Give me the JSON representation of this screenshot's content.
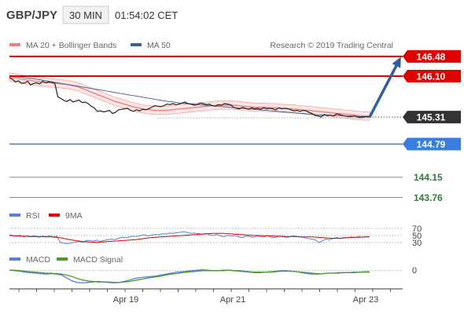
{
  "header": {
    "pair": "GBP/JPY",
    "timeframe": "30 MIN",
    "time": "01:54:02 CET"
  },
  "legend": {
    "bollinger": "MA 20 + Bollinger Bands",
    "ma50": "MA 50",
    "copyright": "Research © 2019 Trading Central"
  },
  "colors": {
    "bollinger": "#f08080",
    "ma50": "#3a6090",
    "resistance": "#e00000",
    "support": "#3a7de0",
    "target": "#5fae5f",
    "current": "#333333",
    "arrow": "#2f5f9f",
    "rsi": "#5b7fd6",
    "rsi_ma": "#e00000",
    "macd": "#5b7fd6",
    "macd_signal": "#4a9a2a"
  },
  "levels": [
    {
      "label": "146.48",
      "value": 146.48,
      "kind": "resistance"
    },
    {
      "label": "146.10",
      "value": 146.1,
      "kind": "resistance"
    },
    {
      "label": "145.31",
      "value": 145.31,
      "kind": "current"
    },
    {
      "label": "144.79",
      "value": 144.79,
      "kind": "support"
    },
    {
      "label": "144.15",
      "value": 144.15,
      "kind": "target"
    },
    {
      "label": "143.76",
      "value": 143.76,
      "kind": "target"
    }
  ],
  "rsi_panel": {
    "label": "RSI",
    "ma_label": "9MA",
    "ticks": [
      "70",
      "50",
      "30"
    ]
  },
  "macd_panel": {
    "label": "MACD",
    "signal_label": "MACD Signal",
    "ticks": [
      "0"
    ]
  },
  "chart_data": {
    "type": "line",
    "x_labels": [
      "Apr 19",
      "Apr 21",
      "Apr 23"
    ],
    "price_ylim": [
      143.6,
      146.6
    ],
    "price": [
      146.07,
      146.04,
      145.99,
      146.01,
      145.96,
      145.97,
      146.0,
      145.93,
      145.96,
      145.97,
      145.95,
      146.0,
      145.97,
      145.99,
      145.98,
      145.96,
      145.7,
      145.67,
      145.63,
      145.61,
      145.65,
      145.6,
      145.62,
      145.64,
      145.59,
      145.6,
      145.57,
      145.52,
      145.49,
      145.42,
      145.43,
      145.41,
      145.42,
      145.44,
      145.38,
      145.4,
      145.45,
      145.46,
      145.47,
      145.48,
      145.44,
      145.42,
      145.45,
      145.43,
      145.46,
      145.45,
      145.47,
      145.5,
      145.53,
      145.52,
      145.51,
      145.53,
      145.56,
      145.55,
      145.57,
      145.55,
      145.56,
      145.58,
      145.6,
      145.57,
      145.56,
      145.54,
      145.55,
      145.58,
      145.57,
      145.55,
      145.56,
      145.53,
      145.52,
      145.55,
      145.54,
      145.57,
      145.56,
      145.55,
      145.5,
      145.48,
      145.47,
      145.5,
      145.48,
      145.46,
      145.49,
      145.47,
      145.48,
      145.46,
      145.49,
      145.47,
      145.48,
      145.47,
      145.45,
      145.49,
      145.47,
      145.48,
      145.47,
      145.45,
      145.43,
      145.44,
      145.42,
      145.44,
      145.43,
      145.4,
      145.38,
      145.34,
      145.33,
      145.31,
      145.36,
      145.34,
      145.35,
      145.33,
      145.37,
      145.36,
      145.34,
      145.33,
      145.32,
      145.32,
      145.33,
      145.31,
      145.3,
      145.31,
      145.32,
      145.31
    ],
    "ma20": [
      146.08,
      146.07,
      146.05,
      146.03,
      146.02,
      146.0,
      145.99,
      145.98,
      145.97,
      145.96,
      145.95,
      145.94,
      145.92,
      145.9,
      145.86,
      145.82,
      145.78,
      145.74,
      145.7,
      145.66,
      145.62,
      145.59,
      145.56,
      145.53,
      145.5,
      145.48,
      145.46,
      145.45,
      145.44,
      145.44,
      145.44,
      145.45,
      145.46,
      145.47,
      145.48,
      145.49,
      145.5,
      145.51,
      145.52,
      145.53,
      145.54,
      145.54,
      145.54,
      145.54,
      145.53,
      145.52,
      145.51,
      145.5,
      145.5,
      145.5,
      145.49,
      145.49,
      145.48,
      145.47,
      145.47,
      145.46,
      145.45,
      145.44,
      145.43,
      145.42,
      145.41,
      145.4,
      145.39,
      145.38,
      145.37,
      145.36,
      145.35,
      145.34,
      145.33,
      145.33
    ],
    "ma50": [
      146.1,
      146.09,
      146.08,
      146.06,
      146.05,
      146.03,
      146.01,
      145.99,
      145.97,
      145.95,
      145.93,
      145.91,
      145.89,
      145.87,
      145.85,
      145.83,
      145.81,
      145.79,
      145.77,
      145.75,
      145.73,
      145.71,
      145.69,
      145.67,
      145.65,
      145.63,
      145.61,
      145.6,
      145.58,
      145.57,
      145.56,
      145.55,
      145.54,
      145.53,
      145.52,
      145.51,
      145.5,
      145.49,
      145.48,
      145.47,
      145.46,
      145.45,
      145.44,
      145.43,
      145.42,
      145.41,
      145.4,
      145.39,
      145.38,
      145.37,
      145.36,
      145.35,
      145.35,
      145.34,
      145.34,
      145.33,
      145.33,
      145.32,
      145.32,
      145.32
    ],
    "rsi_ylim": [
      10,
      90
    ],
    "rsi": [
      52,
      50,
      48,
      51,
      46,
      49,
      47,
      50,
      45,
      48,
      47,
      49,
      46,
      48,
      30,
      28,
      27,
      29,
      31,
      33,
      30,
      35,
      36,
      34,
      37,
      33,
      36,
      38,
      40,
      38,
      42,
      45,
      44,
      46,
      48,
      47,
      50,
      52,
      49,
      51,
      53,
      52,
      55,
      54,
      57,
      56,
      58,
      59,
      61,
      58,
      56,
      57,
      55,
      54,
      56,
      52,
      50,
      53,
      49,
      47,
      51,
      48,
      50,
      46,
      44,
      48,
      47,
      45,
      49,
      47,
      46,
      50,
      45,
      44,
      48,
      47,
      45,
      46,
      49,
      47,
      46,
      44,
      42,
      40,
      38,
      30,
      35,
      40,
      38,
      42,
      44,
      41,
      45,
      43,
      46,
      44,
      47,
      45,
      46,
      47
    ],
    "rsi_ma": [
      50,
      49,
      48,
      48,
      47,
      47,
      47,
      46,
      46,
      45,
      43,
      40,
      37,
      35,
      33,
      32,
      31,
      31,
      32,
      33,
      34,
      35,
      36,
      37,
      38,
      40,
      42,
      44,
      45,
      46,
      47,
      48,
      49,
      50,
      51,
      52,
      53,
      54,
      55,
      56,
      56,
      56,
      55,
      54,
      53,
      52,
      51,
      50,
      50,
      49,
      49,
      48,
      48,
      47,
      47,
      47,
      46,
      46,
      46,
      45,
      44,
      43,
      42,
      42,
      43,
      44,
      45,
      45,
      46,
      46
    ],
    "macd_ylim": [
      -0.35,
      0.1
    ],
    "macd": [
      0.0,
      -0.01,
      -0.02,
      -0.04,
      -0.05,
      -0.06,
      -0.07,
      -0.08,
      -0.07,
      -0.08,
      -0.1,
      -0.16,
      -0.22,
      -0.25,
      -0.26,
      -0.25,
      -0.24,
      -0.23,
      -0.24,
      -0.25,
      -0.26,
      -0.25,
      -0.23,
      -0.2,
      -0.17,
      -0.15,
      -0.14,
      -0.13,
      -0.12,
      -0.1,
      -0.08,
      -0.06,
      -0.04,
      -0.03,
      -0.02,
      -0.01,
      0.0,
      0.01,
      0.0,
      -0.01,
      -0.01,
      0.0,
      0.0,
      -0.01,
      -0.02,
      -0.03,
      -0.04,
      -0.05,
      -0.05,
      -0.04,
      -0.03,
      -0.02,
      -0.01,
      -0.01,
      -0.02,
      -0.03,
      -0.05,
      -0.07,
      -0.08,
      -0.08,
      -0.07,
      -0.06,
      -0.06,
      -0.05,
      -0.05,
      -0.05,
      -0.04,
      -0.04,
      -0.03,
      -0.03
    ],
    "macd_signal": [
      0.0,
      0.0,
      -0.01,
      -0.02,
      -0.03,
      -0.04,
      -0.05,
      -0.06,
      -0.06,
      -0.07,
      -0.08,
      -0.1,
      -0.13,
      -0.17,
      -0.2,
      -0.22,
      -0.23,
      -0.24,
      -0.24,
      -0.24,
      -0.25,
      -0.25,
      -0.24,
      -0.23,
      -0.21,
      -0.19,
      -0.17,
      -0.15,
      -0.14,
      -0.12,
      -0.1,
      -0.08,
      -0.07,
      -0.05,
      -0.04,
      -0.03,
      -0.02,
      -0.01,
      -0.01,
      -0.01,
      -0.01,
      -0.01,
      0.0,
      -0.01,
      -0.01,
      -0.02,
      -0.03,
      -0.04,
      -0.04,
      -0.04,
      -0.04,
      -0.03,
      -0.02,
      -0.02,
      -0.02,
      -0.03,
      -0.04,
      -0.05,
      -0.06,
      -0.07,
      -0.07,
      -0.06,
      -0.06,
      -0.06,
      -0.05,
      -0.05,
      -0.05,
      -0.04,
      -0.04,
      -0.04
    ]
  }
}
